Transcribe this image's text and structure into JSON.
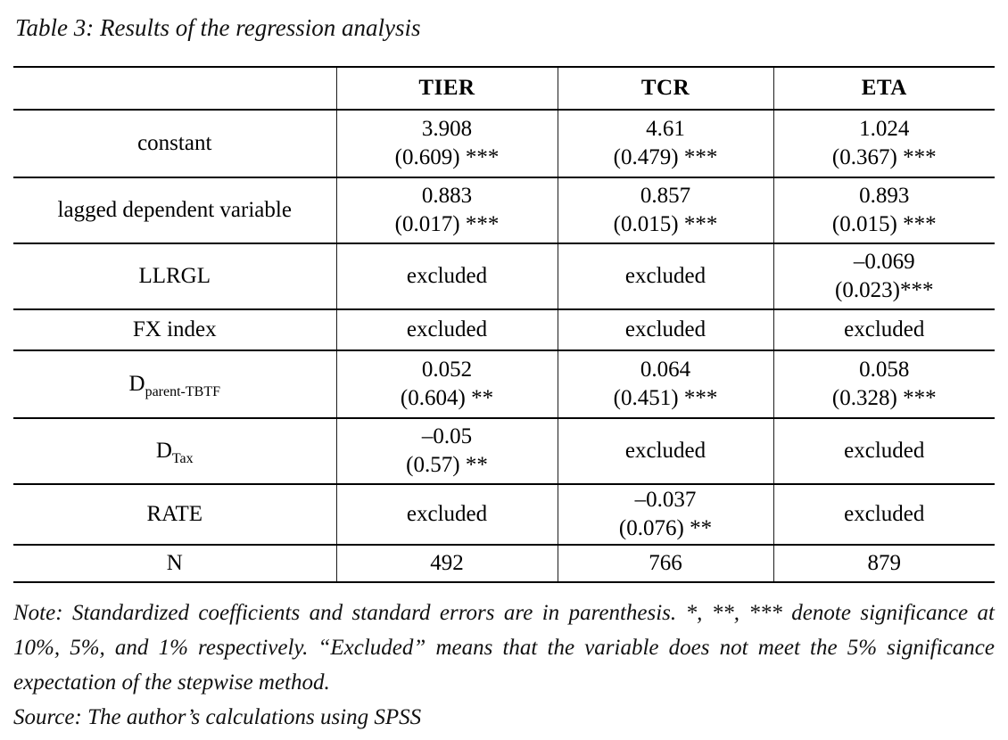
{
  "title": "Table 3: Results of the regression analysis",
  "table": {
    "columns": [
      "",
      "TIER",
      "TCR",
      "ETA"
    ],
    "rows": [
      {
        "label": "constant",
        "label_sub": "",
        "cells": [
          {
            "value": "3.908",
            "se": "(0.609) ***"
          },
          {
            "value": "4.61",
            "se": "(0.479) ***"
          },
          {
            "value": "1.024",
            "se": "(0.367) ***"
          }
        ]
      },
      {
        "label": "lagged dependent variable",
        "label_sub": "",
        "cells": [
          {
            "value": "0.883",
            "se": "(0.017) ***"
          },
          {
            "value": "0.857",
            "se": "(0.015) ***"
          },
          {
            "value": "0.893",
            "se": "(0.015) ***"
          }
        ]
      },
      {
        "label": "LLRGL",
        "label_sub": "",
        "cells": [
          {
            "value": "excluded",
            "se": ""
          },
          {
            "value": "excluded",
            "se": ""
          },
          {
            "value": "–0.069",
            "se": "(0.023)***"
          }
        ]
      },
      {
        "label": "FX index",
        "label_sub": "",
        "cells": [
          {
            "value": "excluded",
            "se": ""
          },
          {
            "value": "excluded",
            "se": ""
          },
          {
            "value": "excluded",
            "se": ""
          }
        ]
      },
      {
        "label": "D",
        "label_sub": "parent-TBTF",
        "cells": [
          {
            "value": "0.052",
            "se": "(0.604) **"
          },
          {
            "value": "0.064",
            "se": "(0.451) ***"
          },
          {
            "value": "0.058",
            "se": "(0.328) ***"
          }
        ]
      },
      {
        "label": "D",
        "label_sub": "Tax",
        "cells": [
          {
            "value": "–0.05",
            "se": "(0.57) **"
          },
          {
            "value": "excluded",
            "se": ""
          },
          {
            "value": "excluded",
            "se": ""
          }
        ]
      },
      {
        "label": "RATE",
        "label_sub": "",
        "cells": [
          {
            "value": "excluded",
            "se": ""
          },
          {
            "value": "–0.037",
            "se": "(0.076) **"
          },
          {
            "value": "excluded",
            "se": ""
          }
        ]
      },
      {
        "label": "N",
        "label_sub": "",
        "cells": [
          {
            "value": "492",
            "se": ""
          },
          {
            "value": "766",
            "se": ""
          },
          {
            "value": "879",
            "se": ""
          }
        ]
      }
    ]
  },
  "notes": {
    "note": "Note: Standardized coefficients and standard errors are in parenthesis. *, **, *** denote significance at 10%, 5%, and 1% respectively. “Excluded” means that the variable does not meet the 5% significance expectation of the stepwise method.",
    "source": "Source: The author’s calculations using SPSS"
  }
}
